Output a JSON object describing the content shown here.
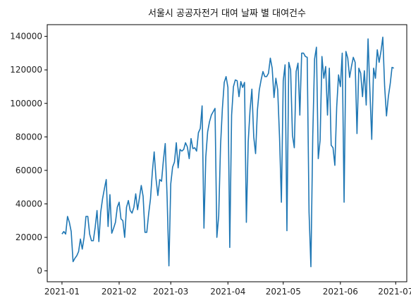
{
  "chart_data": {
    "type": "line",
    "title": "서울시 공공자전거 대여 날짜 별 대여건수",
    "xlabel": "",
    "ylabel": "",
    "x_tick_labels": [
      "2021-01",
      "2021-02",
      "2021-03",
      "2021-04",
      "2021-05",
      "2021-06",
      "2021-07"
    ],
    "y_tick_labels": [
      "0",
      "20000",
      "40000",
      "60000",
      "80000",
      "100000",
      "120000",
      "140000"
    ],
    "xlim": [
      "2020-12-24",
      "2021-07-07"
    ],
    "ylim": [
      -6500,
      147000
    ],
    "grid": false,
    "series": [
      {
        "color": "#1f77b4",
        "x": [
          "2021-01-01",
          "2021-01-02",
          "2021-01-03",
          "2021-01-04",
          "2021-01-05",
          "2021-01-06",
          "2021-01-07",
          "2021-01-08",
          "2021-01-09",
          "2021-01-10",
          "2021-01-11",
          "2021-01-12",
          "2021-01-13",
          "2021-01-14",
          "2021-01-15",
          "2021-01-16",
          "2021-01-17",
          "2021-01-18",
          "2021-01-19",
          "2021-01-20",
          "2021-01-21",
          "2021-01-22",
          "2021-01-23",
          "2021-01-24",
          "2021-01-25",
          "2021-01-26",
          "2021-01-27",
          "2021-01-28",
          "2021-01-29",
          "2021-01-30",
          "2021-01-31",
          "2021-02-01",
          "2021-02-02",
          "2021-02-03",
          "2021-02-04",
          "2021-02-05",
          "2021-02-06",
          "2021-02-07",
          "2021-02-08",
          "2021-02-09",
          "2021-02-10",
          "2021-02-11",
          "2021-02-12",
          "2021-02-13",
          "2021-02-14",
          "2021-02-15",
          "2021-02-16",
          "2021-02-17",
          "2021-02-18",
          "2021-02-19",
          "2021-02-20",
          "2021-02-21",
          "2021-02-22",
          "2021-02-23",
          "2021-02-24",
          "2021-02-25",
          "2021-02-26",
          "2021-02-27",
          "2021-02-28",
          "2021-03-01",
          "2021-03-02",
          "2021-03-03",
          "2021-03-04",
          "2021-03-05",
          "2021-03-06",
          "2021-03-07",
          "2021-03-08",
          "2021-03-09",
          "2021-03-10",
          "2021-03-11",
          "2021-03-12",
          "2021-03-13",
          "2021-03-14",
          "2021-03-15",
          "2021-03-16",
          "2021-03-17",
          "2021-03-18",
          "2021-03-19",
          "2021-03-20",
          "2021-03-21",
          "2021-03-22",
          "2021-03-23",
          "2021-03-24",
          "2021-03-25",
          "2021-03-26",
          "2021-03-27",
          "2021-03-28",
          "2021-03-29",
          "2021-03-30",
          "2021-03-31",
          "2021-04-01",
          "2021-04-02",
          "2021-04-03",
          "2021-04-04",
          "2021-04-05",
          "2021-04-06",
          "2021-04-07",
          "2021-04-08",
          "2021-04-09",
          "2021-04-10",
          "2021-04-11",
          "2021-04-12",
          "2021-04-13",
          "2021-04-14",
          "2021-04-15",
          "2021-04-16",
          "2021-04-17",
          "2021-04-18",
          "2021-04-19",
          "2021-04-20",
          "2021-04-21",
          "2021-04-22",
          "2021-04-23",
          "2021-04-24",
          "2021-04-25",
          "2021-04-26",
          "2021-04-27",
          "2021-04-28",
          "2021-04-29",
          "2021-04-30",
          "2021-05-01",
          "2021-05-02",
          "2021-05-03",
          "2021-05-04",
          "2021-05-05",
          "2021-05-06",
          "2021-05-07",
          "2021-05-08",
          "2021-05-09",
          "2021-05-10",
          "2021-05-11",
          "2021-05-12",
          "2021-05-13",
          "2021-05-14",
          "2021-05-15",
          "2021-05-16",
          "2021-05-17",
          "2021-05-18",
          "2021-05-19",
          "2021-05-20",
          "2021-05-21",
          "2021-05-22",
          "2021-05-23",
          "2021-05-24",
          "2021-05-25",
          "2021-05-26",
          "2021-05-27",
          "2021-05-28",
          "2021-05-29",
          "2021-05-30",
          "2021-05-31",
          "2021-06-01",
          "2021-06-02",
          "2021-06-03",
          "2021-06-04",
          "2021-06-05",
          "2021-06-06",
          "2021-06-07",
          "2021-06-08",
          "2021-06-09",
          "2021-06-10",
          "2021-06-11",
          "2021-06-12",
          "2021-06-13",
          "2021-06-14",
          "2021-06-15",
          "2021-06-16",
          "2021-06-17",
          "2021-06-18",
          "2021-06-19",
          "2021-06-20",
          "2021-06-21",
          "2021-06-22",
          "2021-06-23",
          "2021-06-24",
          "2021-06-25",
          "2021-06-26",
          "2021-06-27",
          "2021-06-28",
          "2021-06-29",
          "2021-06-30"
        ],
        "values": [
          22000,
          23500,
          22000,
          32500,
          29000,
          23500,
          5500,
          7500,
          9000,
          11500,
          19000,
          13000,
          20000,
          32500,
          32500,
          22000,
          18000,
          18000,
          26000,
          36000,
          17500,
          35000,
          43000,
          49000,
          54500,
          26500,
          45500,
          22500,
          25500,
          29000,
          38000,
          41000,
          31000,
          30000,
          20000,
          38000,
          42000,
          36000,
          34500,
          38000,
          46000,
          36500,
          43500,
          51000,
          44500,
          23000,
          23000,
          34000,
          43000,
          59000,
          71000,
          55000,
          45000,
          54500,
          53500,
          66000,
          76000,
          44500,
          3000,
          52000,
          62000,
          65000,
          76500,
          61500,
          72500,
          71500,
          72500,
          76500,
          74000,
          67000,
          79000,
          73000,
          73500,
          71500,
          82500,
          85000,
          98500,
          25500,
          68000,
          83000,
          89000,
          93000,
          95000,
          97000,
          20000,
          33000,
          75000,
          97000,
          112500,
          116000,
          109500,
          14000,
          93000,
          110000,
          114000,
          113500,
          104000,
          113000,
          109500,
          112500,
          29000,
          77000,
          96000,
          108500,
          80000,
          70000,
          96000,
          108000,
          114000,
          119000,
          116000,
          116000,
          118000,
          127000,
          121000,
          103500,
          115000,
          108000,
          79500,
          41000,
          113500,
          123000,
          24000,
          124500,
          120000,
          81000,
          73500,
          119000,
          124000,
          93000,
          130000,
          130000,
          128000,
          127500,
          35000,
          2500,
          80000,
          126500,
          133500,
          67000,
          78000,
          128000,
          115000,
          122000,
          93000,
          121000,
          75000,
          73500,
          63000,
          98000,
          117000,
          110000,
          130000,
          41000,
          131000,
          127000,
          115500,
          122000,
          127500,
          124500,
          82000,
          121000,
          118000,
          104000,
          119500,
          99000,
          138500,
          107500,
          78500,
          121000,
          115000,
          132000,
          124500,
          131000,
          139500,
          110000,
          92500,
          104000,
          111500,
          121500,
          121000
        ]
      }
    ]
  }
}
